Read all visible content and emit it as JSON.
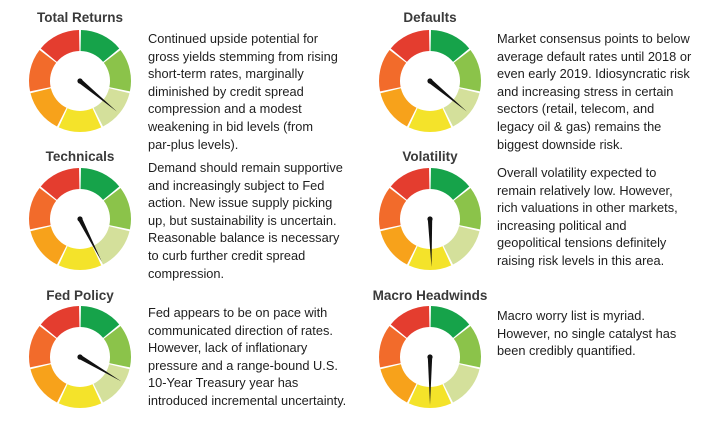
{
  "colors": {
    "segments": [
      "#16a34a",
      "#8bc34a",
      "#d4e09b",
      "#f4e32a",
      "#f7a21b",
      "#f26b2b",
      "#e43d2f"
    ],
    "needle": "#111111"
  },
  "gauges": [
    {
      "title": "Total Returns",
      "level": 0.72,
      "description": [
        "Continued upside potential for",
        "gross yields stemming from rising",
        "short-term rates, marginally",
        "diminished by credit spread",
        "compression and a modest",
        "weakening in bid levels (from",
        "par-plus levels)."
      ]
    },
    {
      "title": "Defaults",
      "level": 0.72,
      "description": [
        "Market consensus points to below",
        "average default rates until 2018 or",
        "even early 2019. Idiosyncratic risk",
        "and increasing stress in certain",
        "sectors (retail, telecom, and",
        "legacy oil & gas) remains the",
        "biggest downside risk."
      ]
    },
    {
      "title": "Technicals",
      "level": 0.85,
      "description": [
        "Demand should remain supportive",
        "and increasingly subject to Fed",
        "action. New issue supply picking",
        "up, but sustainability is uncertain.",
        "Reasonable balance is necessary",
        "to curb further credit spread",
        "compression."
      ]
    },
    {
      "title": "Volatility",
      "level": 0.99,
      "description": [
        "Overall volatility expected to",
        "remain relatively low. However,",
        "rich valuations in other markets,",
        "increasing political and",
        "geopolitical tensions definitely",
        "raising risk levels in this area."
      ]
    },
    {
      "title": "Fed Policy",
      "level": 0.67,
      "description": [
        "Fed appears to be on pace with",
        "communicated direction of rates.",
        "However, lack of inflationary",
        "pressure and a range-bound U.S.",
        "10-Year Treasury year has",
        "introduced incremental uncertainty."
      ]
    },
    {
      "title": "Macro Headwinds",
      "level": 1.0,
      "description": [
        "Macro worry list is myriad.",
        "However, no single catalyst has",
        "been credibly quantified."
      ]
    }
  ]
}
